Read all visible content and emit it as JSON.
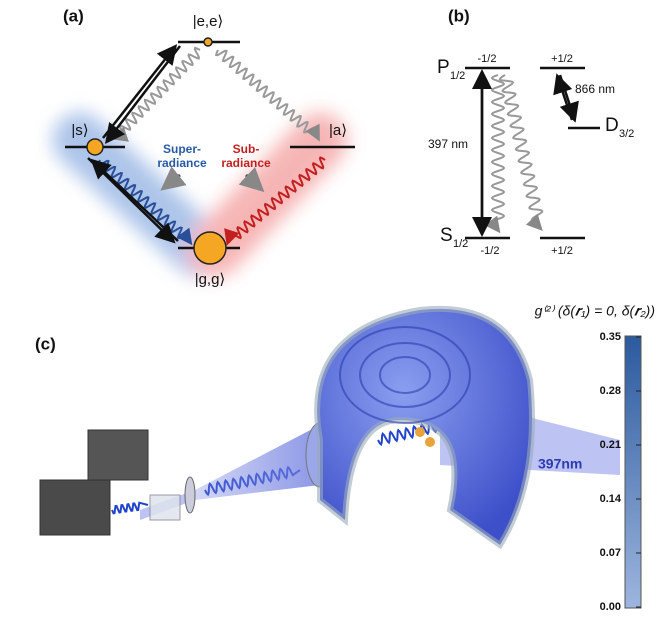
{
  "panel_a": {
    "label": "(a)",
    "levels": {
      "ee": "|e,e⟩",
      "s": "|s⟩",
      "a": "|a⟩",
      "gg": "|g,g⟩"
    },
    "super": [
      "Super-",
      "radiance"
    ],
    "sub": [
      "Sub-",
      "radiance"
    ]
  },
  "panel_b": {
    "label": "(b)",
    "P": "P",
    "P_sub": "1/2",
    "D": "D",
    "D_sub": "3/2",
    "S": "S",
    "S_sub": "1/2",
    "m_left": "-1/2",
    "m_right": "+1/2",
    "m_left_s": "-1/2",
    "m_right_s": "+1/2",
    "wl_866": "866 nm",
    "wl_397": "397 nm"
  },
  "panel_c": {
    "label": "(c)",
    "beam_label": "397nm"
  },
  "colorbar": {
    "title": "g⁽²⁾ (δ(𝒓₁) = 0, δ(𝒓₂))",
    "ylim": [
      0,
      0.35
    ],
    "yticks": [
      {
        "value": 0,
        "label": "0.00"
      },
      {
        "value": 0.07,
        "label": "0.07"
      },
      {
        "value": 0.14,
        "label": "0.14"
      },
      {
        "value": 0.21,
        "label": "0.21"
      },
      {
        "value": 0.28,
        "label": "0.28"
      },
      {
        "value": 0.35,
        "label": "0.35"
      }
    ],
    "colors": [
      "#9db5de",
      "#2b5a9e"
    ]
  }
}
